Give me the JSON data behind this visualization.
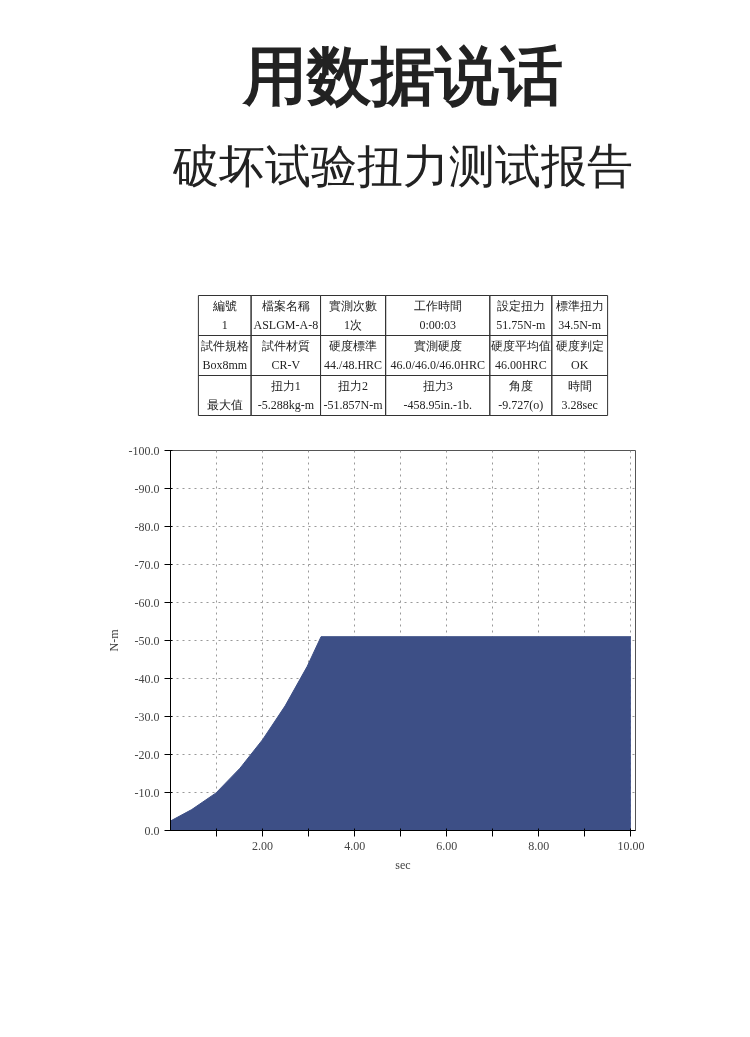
{
  "chart_data": {
    "type": "area",
    "title": "用数据说话",
    "subtitle": "破坏试验扭力测试报告",
    "annotations": [
      "編號\n1",
      "檔案名稱\nASLGM-A-8",
      "實測次數\n1次",
      "工作時間\n0:00:03",
      "設定扭力\n51.75N-m",
      "標準扭力\n34.5N-m",
      "試件規格\nBox8mm",
      "試件材質\nCR-V",
      "硬度標準\n44./48.HRC",
      "實測硬度\n46.0/46.0/46.0HRC",
      "硬度平均值\n46.00HRC",
      "硬度判定\nOK",
      "\n最大值",
      "扭力1\n-5.288kg-m",
      "扭力2\n-51.857N-m",
      "扭力3\n-458.95in.-1b.",
      "角度\n-9.727(o)",
      "時間\n3.28sec"
    ],
    "xlabel": "sec",
    "ylabel": "N-m",
    "x": [
      0,
      0.46,
      0.99,
      1.51,
      2.0,
      2.49,
      2.97,
      3.27,
      10.0
    ],
    "series": [
      {
        "color": "#3d4f86",
        "values": [
          -2.5,
          -5.5,
          -9.9,
          -16.4,
          -23.9,
          -32.8,
          -43.2,
          -51,
          -51
        ]
      }
    ],
    "xlim": [
      0,
      10.1
    ],
    "ylim": [
      0,
      -100
    ],
    "xticks": [
      {
        "value": 1,
        "label": null
      },
      {
        "value": 2,
        "label": "2.00"
      },
      {
        "value": 3,
        "label": null
      },
      {
        "value": 4,
        "label": "4.00"
      },
      {
        "value": 5,
        "label": null
      },
      {
        "value": 6,
        "label": "6.00"
      },
      {
        "value": 7,
        "label": null
      },
      {
        "value": 8,
        "label": "8.00"
      },
      {
        "value": 9,
        "label": null
      },
      {
        "value": 10,
        "label": "10.00"
      }
    ],
    "yticks": [
      {
        "value": 0,
        "label": "0.0"
      },
      {
        "value": -10,
        "label": "-10.0"
      },
      {
        "value": -20,
        "label": "-20.0"
      },
      {
        "value": -30,
        "label": "-30.0"
      },
      {
        "value": -40,
        "label": "-40.0"
      },
      {
        "value": -50,
        "label": "-50.0"
      },
      {
        "value": -60,
        "label": "-60.0"
      },
      {
        "value": -70,
        "label": "-70.0"
      },
      {
        "value": -80,
        "label": "-80.0"
      },
      {
        "value": -90,
        "label": "-90.0"
      },
      {
        "value": -100,
        "label": "-100.0"
      }
    ],
    "grid": true,
    "line_style": "dotted"
  }
}
